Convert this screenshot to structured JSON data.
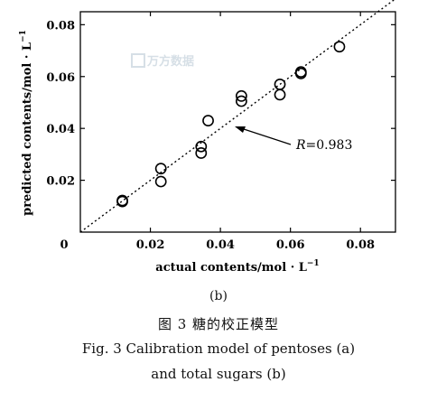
{
  "chart_data": {
    "type": "scatter",
    "xlabel": "actual contents/mol · L",
    "xlabel_sup": "−1",
    "ylabel": "predicted contents/mol · L",
    "ylabel_sup": "−1",
    "xlim": [
      0,
      0.09
    ],
    "ylim": [
      0,
      0.085
    ],
    "x_ticks": [
      0,
      0.02,
      0.04,
      0.06,
      0.08
    ],
    "x_tick_labels": [
      "0",
      "0.02",
      "0.04",
      "0.06",
      "0.08"
    ],
    "y_ticks": [
      0.02,
      0.04,
      0.06,
      0.08
    ],
    "y_tick_labels": [
      "0.02",
      "0.04",
      "0.06",
      "0.08"
    ],
    "points": [
      [
        0.012,
        0.0122
      ],
      [
        0.012,
        0.0118
      ],
      [
        0.023,
        0.0245
      ],
      [
        0.023,
        0.0195
      ],
      [
        0.0345,
        0.033
      ],
      [
        0.0345,
        0.0305
      ],
      [
        0.0365,
        0.043
      ],
      [
        0.046,
        0.0525
      ],
      [
        0.046,
        0.0505
      ],
      [
        0.057,
        0.057
      ],
      [
        0.057,
        0.053
      ],
      [
        0.063,
        0.0618
      ],
      [
        0.063,
        0.0612
      ],
      [
        0.074,
        0.0715
      ]
    ],
    "fit_line": [
      [
        0,
        0
      ],
      [
        0.09,
        0.09
      ]
    ],
    "annotation": {
      "text_italic": "R",
      "text_rest": "=0.983"
    },
    "grid": false,
    "watermark": "万方数据"
  },
  "caption": {
    "sub": "(b)",
    "zh": "图 3   糖的校正模型",
    "en_line1": "Fig. 3   Calibration model of pentoses (a)",
    "en_line2": "and total sugars (b)"
  },
  "colors": {
    "ink": "#000000",
    "watermark": "#d6dfe6"
  }
}
